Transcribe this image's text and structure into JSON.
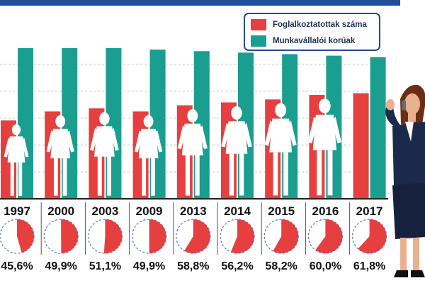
{
  "colors": {
    "employed": "#e5403f",
    "working_age": "#1a9e8f",
    "header_bar": "#1f4e9c",
    "text": "#111111",
    "grid": "#c9c9c9",
    "pie_remainder": "#ffffff",
    "pie_dash": "#4a78b8"
  },
  "legend": {
    "items": [
      {
        "label": "Foglalkoztatottak száma",
        "color": "#e5403f"
      },
      {
        "label": "Munkavállalói korúak",
        "color": "#1a9e8f"
      }
    ]
  },
  "chart_data": {
    "type": "bar",
    "categories": [
      "1997",
      "2000",
      "2003",
      "2009",
      "2013",
      "2014",
      "2015",
      "2016",
      "2017"
    ],
    "series": [
      {
        "name": "Foglalkoztatottak száma",
        "values": [
          0.52,
          0.58,
          0.6,
          0.58,
          0.62,
          0.64,
          0.66,
          0.69,
          0.7
        ]
      },
      {
        "name": "Munkavállalói korúak",
        "values": [
          1.0,
          1.0,
          1.0,
          0.99,
          0.98,
          0.97,
          0.96,
          0.95,
          0.94
        ]
      }
    ],
    "percent_labels": [
      "45,6%",
      "49,9%",
      "51,1%",
      "49,9%",
      "58,8%",
      "56,2%",
      "58,2%",
      "60,0%",
      "61,8%"
    ],
    "percent_values": [
      45.6,
      49.9,
      51.1,
      49.9,
      58.8,
      56.2,
      58.2,
      60.0,
      61.8
    ],
    "ylim": [
      0,
      1
    ],
    "grid": true,
    "legend_position": "top-right"
  },
  "illustration": {
    "figure_icon": "woman-silhouette-icon",
    "presenter_icon": "businesswoman-on-phone-icon"
  }
}
